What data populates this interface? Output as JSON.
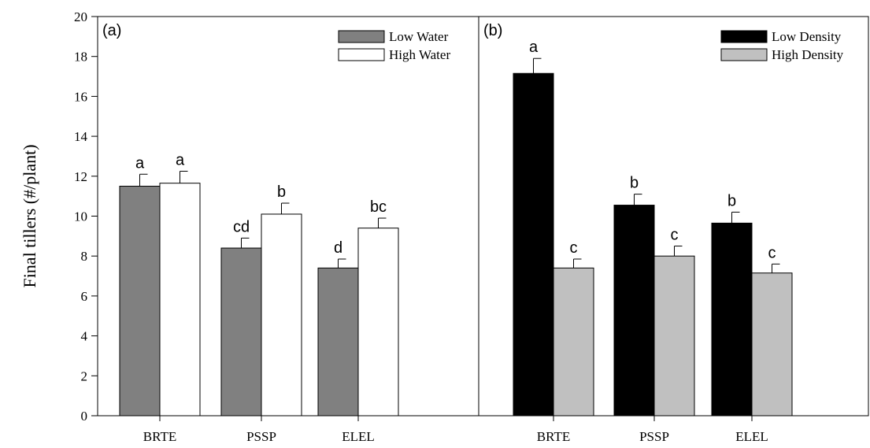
{
  "chart_data": {
    "type": "bar",
    "ylabel": "Final tillers (#/plant)",
    "ylim": [
      0,
      20
    ],
    "yticks": [
      0,
      2,
      4,
      6,
      8,
      10,
      12,
      14,
      16,
      18,
      20
    ],
    "legend_position": "top-right",
    "panels": [
      {
        "label": "(a)",
        "categories": [
          "BRTE",
          "PSSP",
          "ELEL"
        ],
        "series": [
          {
            "name": "Low Water",
            "color": "#808080",
            "values": [
              11.5,
              8.4,
              7.4
            ],
            "errors": [
              0.6,
              0.5,
              0.45
            ],
            "letters": [
              "a",
              "cd",
              "d"
            ]
          },
          {
            "name": "High Water",
            "color": "#ffffff",
            "values": [
              11.65,
              10.1,
              9.4
            ],
            "errors": [
              0.6,
              0.55,
              0.5
            ],
            "letters": [
              "a",
              "b",
              "bc"
            ]
          }
        ]
      },
      {
        "label": "(b)",
        "categories": [
          "BRTE",
          "PSSP",
          "ELEL"
        ],
        "series": [
          {
            "name": "Low Density",
            "color": "#000000",
            "values": [
              17.15,
              10.55,
              9.65
            ],
            "errors": [
              0.75,
              0.55,
              0.55
            ],
            "letters": [
              "a",
              "b",
              "b"
            ]
          },
          {
            "name": "High Density",
            "color": "#c0c0c0",
            "values": [
              7.4,
              8.0,
              7.15
            ],
            "errors": [
              0.45,
              0.5,
              0.45
            ],
            "letters": [
              "c",
              "c",
              "c"
            ]
          }
        ]
      }
    ]
  }
}
